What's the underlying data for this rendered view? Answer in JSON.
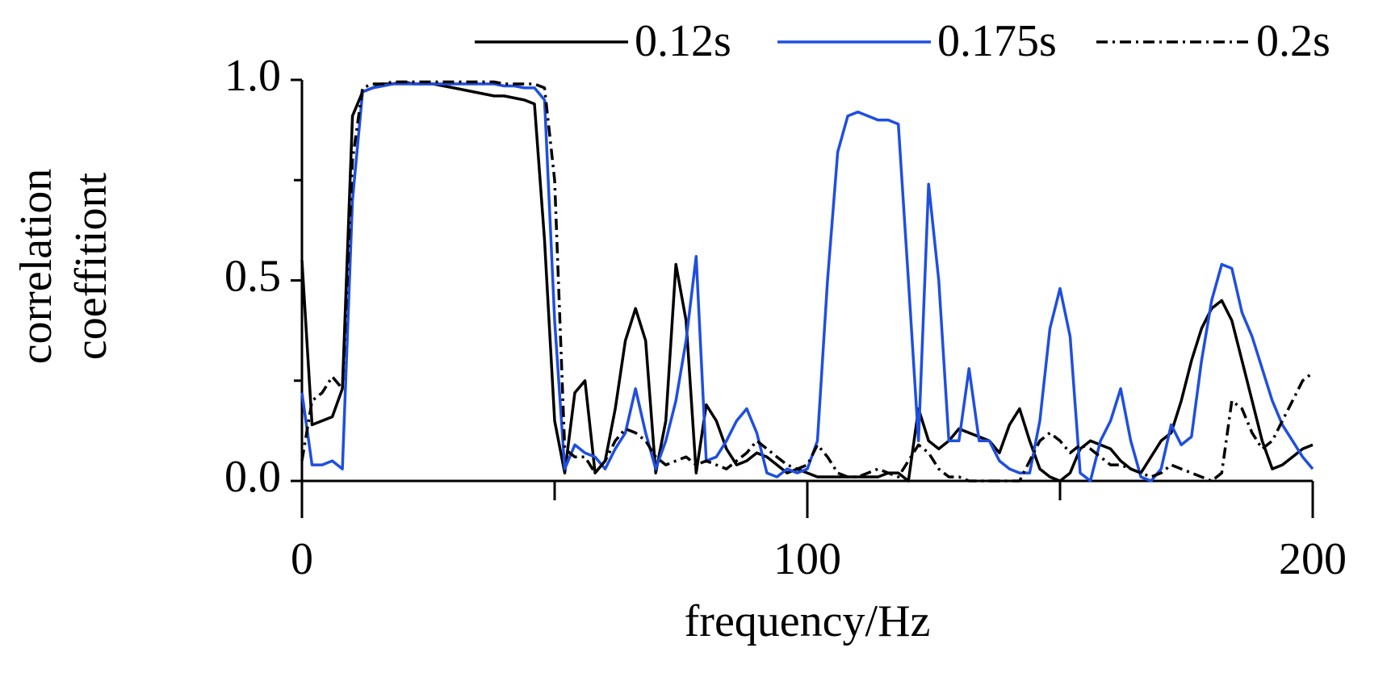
{
  "chart_data": {
    "type": "line",
    "xlabel": "frequency/Hz",
    "ylabel": [
      "correlation",
      "coeffitiont"
    ],
    "x": [
      0,
      2,
      4,
      6,
      8,
      10,
      12,
      14,
      16,
      18,
      20,
      22,
      24,
      26,
      28,
      30,
      32,
      34,
      36,
      38,
      40,
      42,
      44,
      46,
      48,
      50,
      52,
      54,
      56,
      58,
      60,
      62,
      64,
      66,
      68,
      70,
      72,
      74,
      76,
      78,
      80,
      82,
      84,
      86,
      88,
      90,
      92,
      94,
      96,
      98,
      100,
      102,
      104,
      106,
      108,
      110,
      112,
      114,
      116,
      118,
      120,
      122,
      124,
      126,
      128,
      130,
      132,
      134,
      136,
      138,
      140,
      142,
      144,
      146,
      148,
      150,
      152,
      154,
      156,
      158,
      160,
      162,
      164,
      166,
      168,
      170,
      172,
      174,
      176,
      178,
      180,
      182,
      184,
      186,
      188,
      190,
      192,
      194,
      196,
      198,
      200
    ],
    "series": [
      {
        "name": "0.12s",
        "color": "#000000",
        "dash": "solid",
        "values": [
          0.55,
          0.14,
          0.15,
          0.16,
          0.23,
          0.91,
          0.97,
          0.98,
          0.99,
          0.99,
          0.995,
          0.99,
          0.99,
          0.99,
          0.985,
          0.98,
          0.975,
          0.97,
          0.965,
          0.96,
          0.96,
          0.955,
          0.95,
          0.94,
          0.6,
          0.15,
          0.02,
          0.22,
          0.25,
          0.02,
          0.05,
          0.18,
          0.35,
          0.43,
          0.35,
          0.02,
          0.15,
          0.54,
          0.4,
          0.02,
          0.19,
          0.15,
          0.08,
          0.04,
          0.05,
          0.07,
          0.06,
          0.04,
          0.02,
          0.03,
          0.02,
          0.01,
          0.01,
          0.01,
          0.01,
          0.01,
          0.01,
          0.01,
          0.02,
          0.02,
          0.0,
          0.18,
          0.1,
          0.08,
          0.1,
          0.13,
          0.12,
          0.11,
          0.1,
          0.07,
          0.14,
          0.18,
          0.1,
          0.03,
          0.01,
          0.0,
          0.02,
          0.08,
          0.1,
          0.09,
          0.08,
          0.05,
          0.03,
          0.02,
          0.06,
          0.1,
          0.12,
          0.2,
          0.3,
          0.38,
          0.43,
          0.45,
          0.4,
          0.3,
          0.2,
          0.1,
          0.03,
          0.04,
          0.06,
          0.08,
          0.09
        ]
      },
      {
        "name": "0.175s",
        "color": "#1f4fe0",
        "dash": "solid",
        "values": [
          0.22,
          0.04,
          0.04,
          0.05,
          0.03,
          0.7,
          0.97,
          0.98,
          0.985,
          0.99,
          0.99,
          0.99,
          0.99,
          0.99,
          0.99,
          0.99,
          0.99,
          0.99,
          0.99,
          0.99,
          0.985,
          0.985,
          0.98,
          0.98,
          0.95,
          0.4,
          0.03,
          0.09,
          0.07,
          0.06,
          0.03,
          0.08,
          0.12,
          0.23,
          0.12,
          0.03,
          0.1,
          0.2,
          0.35,
          0.56,
          0.05,
          0.06,
          0.1,
          0.15,
          0.18,
          0.12,
          0.02,
          0.01,
          0.03,
          0.02,
          0.03,
          0.1,
          0.5,
          0.82,
          0.91,
          0.92,
          0.91,
          0.9,
          0.9,
          0.89,
          0.5,
          0.1,
          0.74,
          0.5,
          0.1,
          0.1,
          0.28,
          0.1,
          0.1,
          0.05,
          0.03,
          0.02,
          0.02,
          0.15,
          0.38,
          0.48,
          0.36,
          0.02,
          0.0,
          0.1,
          0.15,
          0.23,
          0.1,
          0.01,
          0.0,
          0.03,
          0.14,
          0.09,
          0.11,
          0.3,
          0.45,
          0.54,
          0.53,
          0.42,
          0.36,
          0.28,
          0.2,
          0.14,
          0.1,
          0.06,
          0.03
        ]
      },
      {
        "name": "0.2s",
        "color": "#000000",
        "dash": "dashdot",
        "values": [
          0.05,
          0.2,
          0.22,
          0.26,
          0.23,
          0.8,
          0.98,
          0.99,
          0.99,
          0.995,
          0.995,
          0.995,
          0.995,
          0.995,
          0.995,
          0.995,
          0.995,
          0.995,
          0.995,
          0.995,
          0.99,
          0.99,
          0.99,
          0.99,
          0.98,
          0.75,
          0.08,
          0.06,
          0.06,
          0.02,
          0.05,
          0.1,
          0.13,
          0.12,
          0.1,
          0.06,
          0.04,
          0.05,
          0.06,
          0.04,
          0.05,
          0.04,
          0.03,
          0.05,
          0.07,
          0.1,
          0.08,
          0.06,
          0.04,
          0.03,
          0.04,
          0.09,
          0.06,
          0.02,
          0.01,
          0.01,
          0.02,
          0.03,
          0.02,
          0.01,
          0.05,
          0.09,
          0.07,
          0.03,
          0.01,
          0.01,
          0.0,
          0.0,
          0.0,
          0.0,
          0.0,
          0.0,
          0.05,
          0.1,
          0.12,
          0.1,
          0.07,
          0.09,
          0.08,
          0.06,
          0.04,
          0.04,
          0.03,
          0.02,
          0.01,
          0.02,
          0.04,
          0.03,
          0.02,
          0.01,
          0.0,
          0.02,
          0.2,
          0.18,
          0.12,
          0.08,
          0.1,
          0.15,
          0.2,
          0.25,
          0.27
        ]
      }
    ],
    "xlim": [
      0,
      200
    ],
    "xticks": [
      0,
      100,
      200
    ],
    "xminor_ticks": [
      50,
      150
    ],
    "ylim": [
      0,
      1
    ],
    "yticks": [
      {
        "value": 0,
        "label": "0.0"
      },
      {
        "value": 0.5,
        "label": "0.5"
      },
      {
        "value": 1,
        "label": "1.0"
      }
    ],
    "yminor_ticks": [
      0.25,
      0.75
    ],
    "legend": "top"
  }
}
